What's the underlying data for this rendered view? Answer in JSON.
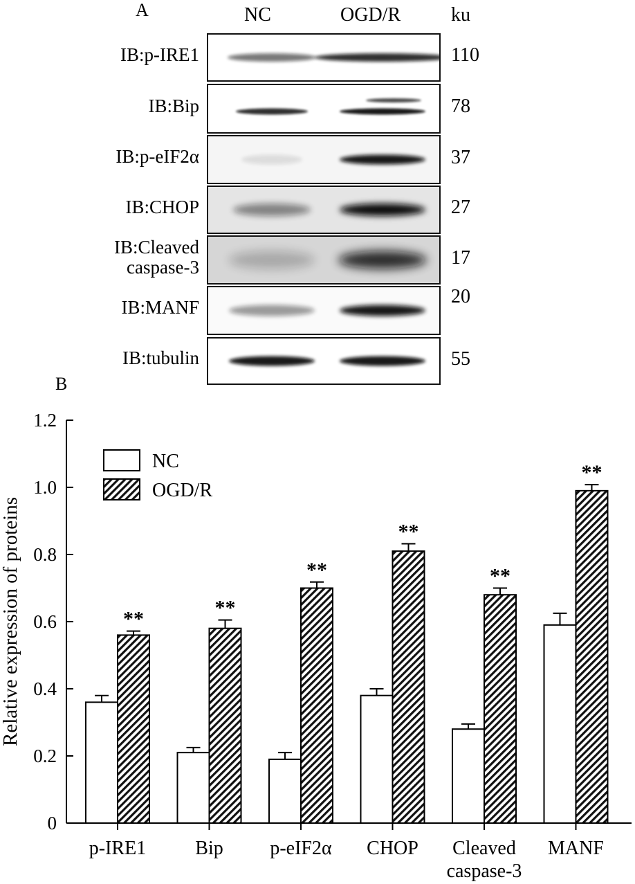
{
  "panel_a": {
    "label": "A",
    "columns": [
      "NC",
      "OGD/R"
    ],
    "unit": "ku",
    "blots": [
      {
        "label": "IB:p-IRE1",
        "kd": "110"
      },
      {
        "label": "IB:Bip",
        "kd": "78"
      },
      {
        "label": "IB:p-eIF2α",
        "kd": "37"
      },
      {
        "label": "IB:CHOP",
        "kd": "27"
      },
      {
        "label": "IB:Cleaved caspase-3",
        "label_lines": [
          "IB:Cleaved",
          "caspase-3"
        ],
        "kd": "17"
      },
      {
        "label": "IB:MANF",
        "kd": "20"
      },
      {
        "label": "IB:tubulin",
        "kd": "55"
      }
    ]
  },
  "panel_b": {
    "label": "B"
  },
  "chart_data": {
    "type": "bar",
    "title": "",
    "ylabel": "Relative expression of proteins",
    "xlabel": "",
    "ylim": [
      0,
      1.2
    ],
    "yticks": [
      "0",
      "0.2",
      "0.4",
      "0.6",
      "0.8",
      "1.0",
      "1.2"
    ],
    "ytick_values": [
      0,
      0.2,
      0.4,
      0.6,
      0.8,
      1.0,
      1.2
    ],
    "categories": [
      "p-IRE1",
      "Bip",
      "p-eIF2α",
      "CHOP",
      "Cleaved caspase-3",
      "MANF"
    ],
    "category_lines": [
      [
        "p-IRE1"
      ],
      [
        "Bip"
      ],
      [
        "p-eIF2α"
      ],
      [
        "CHOP"
      ],
      [
        "Cleaved",
        "caspase-3"
      ],
      [
        "MANF"
      ]
    ],
    "series": [
      {
        "name": "NC",
        "fill": "open",
        "values": [
          0.36,
          0.21,
          0.19,
          0.38,
          0.28,
          0.59
        ],
        "errors": [
          0.02,
          0.015,
          0.02,
          0.02,
          0.015,
          0.035
        ]
      },
      {
        "name": "OGD/R",
        "fill": "hatched",
        "values": [
          0.56,
          0.58,
          0.7,
          0.81,
          0.68,
          0.99
        ],
        "errors": [
          0.012,
          0.025,
          0.018,
          0.022,
          0.02,
          0.018
        ]
      }
    ],
    "significance": [
      "**",
      "**",
      "**",
      "**",
      "**",
      "**"
    ],
    "legend_placement": "top-left",
    "grid": false
  }
}
